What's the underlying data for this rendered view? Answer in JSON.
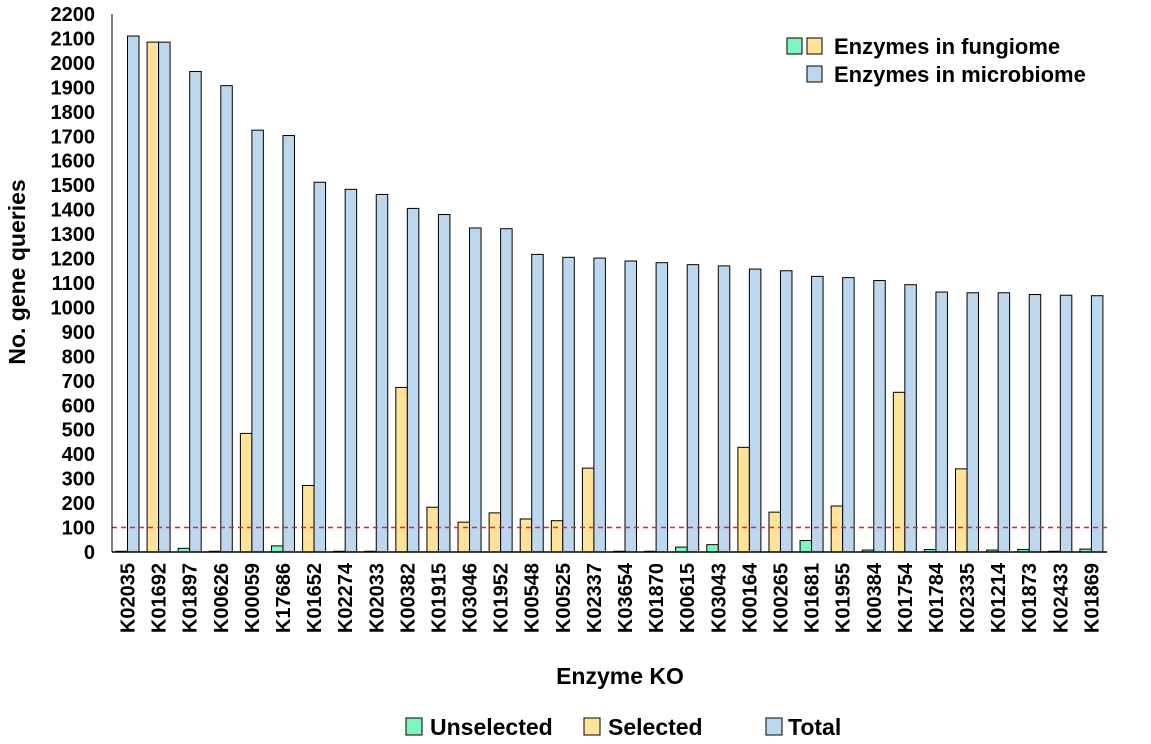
{
  "chart_data": {
    "type": "bar",
    "xlabel": "Enzyme KO",
    "ylabel": "No. gene queries",
    "ylim": [
      0,
      2200
    ],
    "ytick_step": 100,
    "threshold": 100,
    "categories": [
      "K02035",
      "K01692",
      "K01897",
      "K00626",
      "K00059",
      "K17686",
      "K01652",
      "K02274",
      "K02033",
      "K00382",
      "K01915",
      "K03046",
      "K01952",
      "K00548",
      "K00525",
      "K02337",
      "K03654",
      "K01870",
      "K00615",
      "K03043",
      "K00164",
      "K00265",
      "K01681",
      "K01955",
      "K00384",
      "K01754",
      "K01784",
      "K02335",
      "K01214",
      "K01873",
      "K02433",
      "K01869"
    ],
    "fungiome_colored": [
      {
        "name": "Unselected",
        "color": "#7ff5c0",
        "values": [
          0,
          0,
          15,
          0,
          0,
          25,
          0,
          0,
          0,
          0,
          0,
          0,
          0,
          0,
          0,
          0,
          0,
          0,
          20,
          30,
          0,
          0,
          47,
          0,
          8,
          0,
          10,
          0,
          8,
          10,
          0,
          12
        ]
      },
      {
        "name": "Selected",
        "color": "#ffe39a",
        "values": [
          0,
          2085,
          0,
          0,
          485,
          0,
          272,
          0,
          0,
          673,
          183,
          122,
          160,
          135,
          128,
          343,
          0,
          0,
          0,
          0,
          428,
          163,
          0,
          188,
          0,
          653,
          0,
          340,
          0,
          0,
          0,
          0
        ]
      }
    ],
    "series": [
      {
        "name": "Total",
        "color": "#bdd7ee",
        "values": [
          2110,
          2085,
          1965,
          1907,
          1725,
          1703,
          1512,
          1483,
          1462,
          1405,
          1380,
          1325,
          1322,
          1217,
          1205,
          1202,
          1190,
          1183,
          1175,
          1170,
          1157,
          1150,
          1127,
          1122,
          1110,
          1093,
          1063,
          1060,
          1060,
          1053,
          1050,
          1048
        ]
      }
    ],
    "legend_top": [
      {
        "label": "Enzymes in fungiome",
        "swatches": [
          "#7ff5c0",
          "#ffe39a"
        ]
      },
      {
        "label": "Enzymes in microbiome",
        "swatches": [
          "#bdd7ee"
        ]
      }
    ],
    "legend_bottom": [
      {
        "label": "Unselected",
        "color": "#7ff5c0"
      },
      {
        "label": "Selected",
        "color": "#ffe39a"
      },
      {
        "label": "Total",
        "color": "#bdd7ee"
      }
    ],
    "threshold_color": "#e8202a",
    "legend_placement": "top-right",
    "grid": false
  }
}
